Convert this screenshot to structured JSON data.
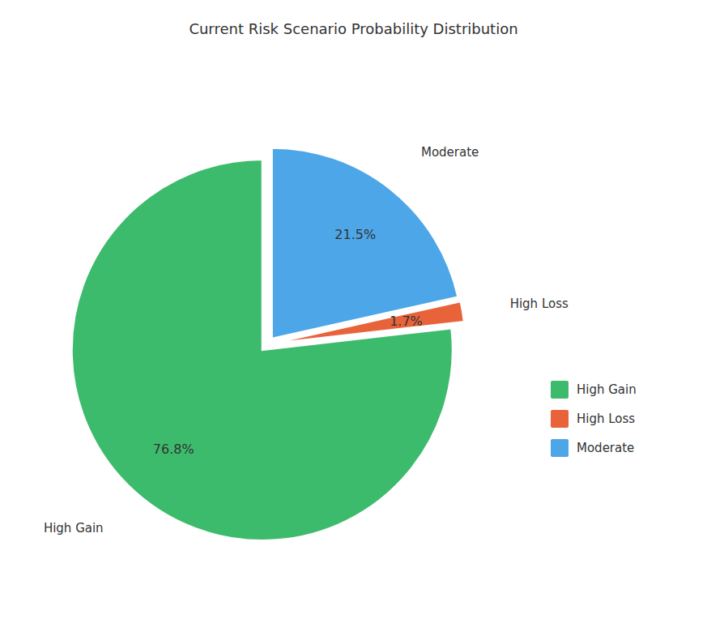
{
  "chart_data": {
    "type": "pie",
    "title": "Current Risk Scenario Probability Distribution",
    "categories": [
      "High Gain",
      "High Loss",
      "Moderate"
    ],
    "values": [
      76.8,
      1.7,
      21.5
    ],
    "value_labels": [
      "76.8%",
      "1.7%",
      "21.5%"
    ],
    "colors": [
      "#3dbb6c",
      "#e8633a",
      "#4da6e8"
    ],
    "data_labels": true,
    "legend": "right"
  }
}
